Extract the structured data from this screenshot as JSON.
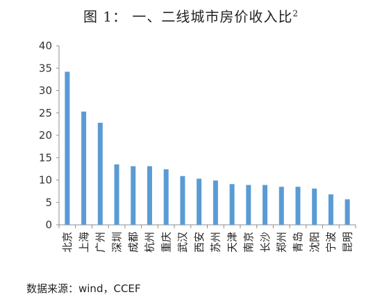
{
  "title": {
    "main": "图 1：   一、二线城市房价收入比",
    "sup": "2"
  },
  "source": "数据来源：wind，CCEF",
  "chart_data": {
    "type": "bar",
    "title": "图 1：   一、二线城市房价收入比²",
    "xlabel": "",
    "ylabel": "",
    "ylim": [
      0,
      40
    ],
    "yticks": [
      0,
      5,
      10,
      15,
      20,
      25,
      30,
      35,
      40
    ],
    "grid": false,
    "bar_color": "#5b9bd5",
    "categories": [
      "北京",
      "上海",
      "广州",
      "深圳",
      "成都",
      "杭州",
      "重庆",
      "武汉",
      "西安",
      "苏州",
      "天津",
      "南京",
      "长沙",
      "郑州",
      "青岛",
      "沈阳",
      "宁波",
      "昆明"
    ],
    "values": [
      34.2,
      25.3,
      22.8,
      13.5,
      13.1,
      13.1,
      12.4,
      10.9,
      10.3,
      9.9,
      9.1,
      8.9,
      8.9,
      8.5,
      8.5,
      8.1,
      6.8,
      5.7
    ]
  }
}
